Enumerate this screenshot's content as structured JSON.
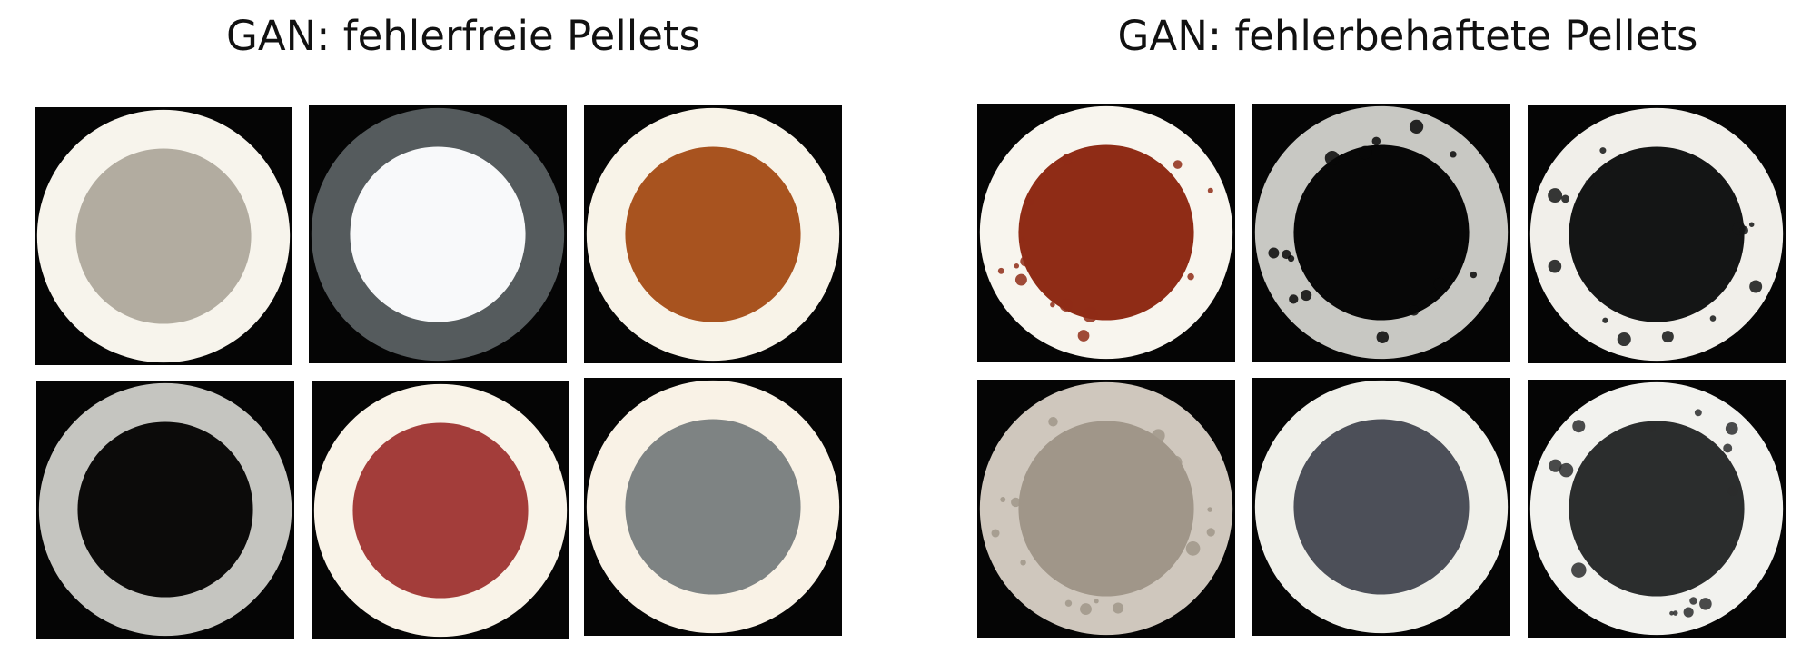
{
  "groups": [
    {
      "title": "GAN: fehlerfreie Pellets",
      "pellets": [
        {
          "ring": "#f7f4ec",
          "core": "#b2aca0",
          "defect": false
        },
        {
          "ring": "#555b5d",
          "core": "#f8f9fa",
          "defect": false
        },
        {
          "ring": "#f8f3e8",
          "core": "#a8531f",
          "defect": false
        },
        {
          "ring": "#c5c5c0",
          "core": "#0c0b0a",
          "defect": false
        },
        {
          "ring": "#f9f3e8",
          "core": "#a33d3a",
          "defect": false
        },
        {
          "ring": "#f9f2e6",
          "core": "#7e8383",
          "defect": false
        }
      ]
    },
    {
      "title": "GAN: fehlerbehaftete Pellets",
      "pellets": [
        {
          "ring": "#f8f5ee",
          "core": "#8f2c16",
          "defect": true
        },
        {
          "ring": "#c8c8c3",
          "core": "#070707",
          "defect": true
        },
        {
          "ring": "#f1efea",
          "core": "#141515",
          "defect": true
        },
        {
          "ring": "#cfc7bd",
          "core": "#a09689",
          "defect": true
        },
        {
          "ring": "#f0f0ea",
          "core": "#4c4f58",
          "defect": false
        },
        {
          "ring": "#f2f2ee",
          "core": "#2b2d2d",
          "defect": true
        }
      ]
    }
  ]
}
